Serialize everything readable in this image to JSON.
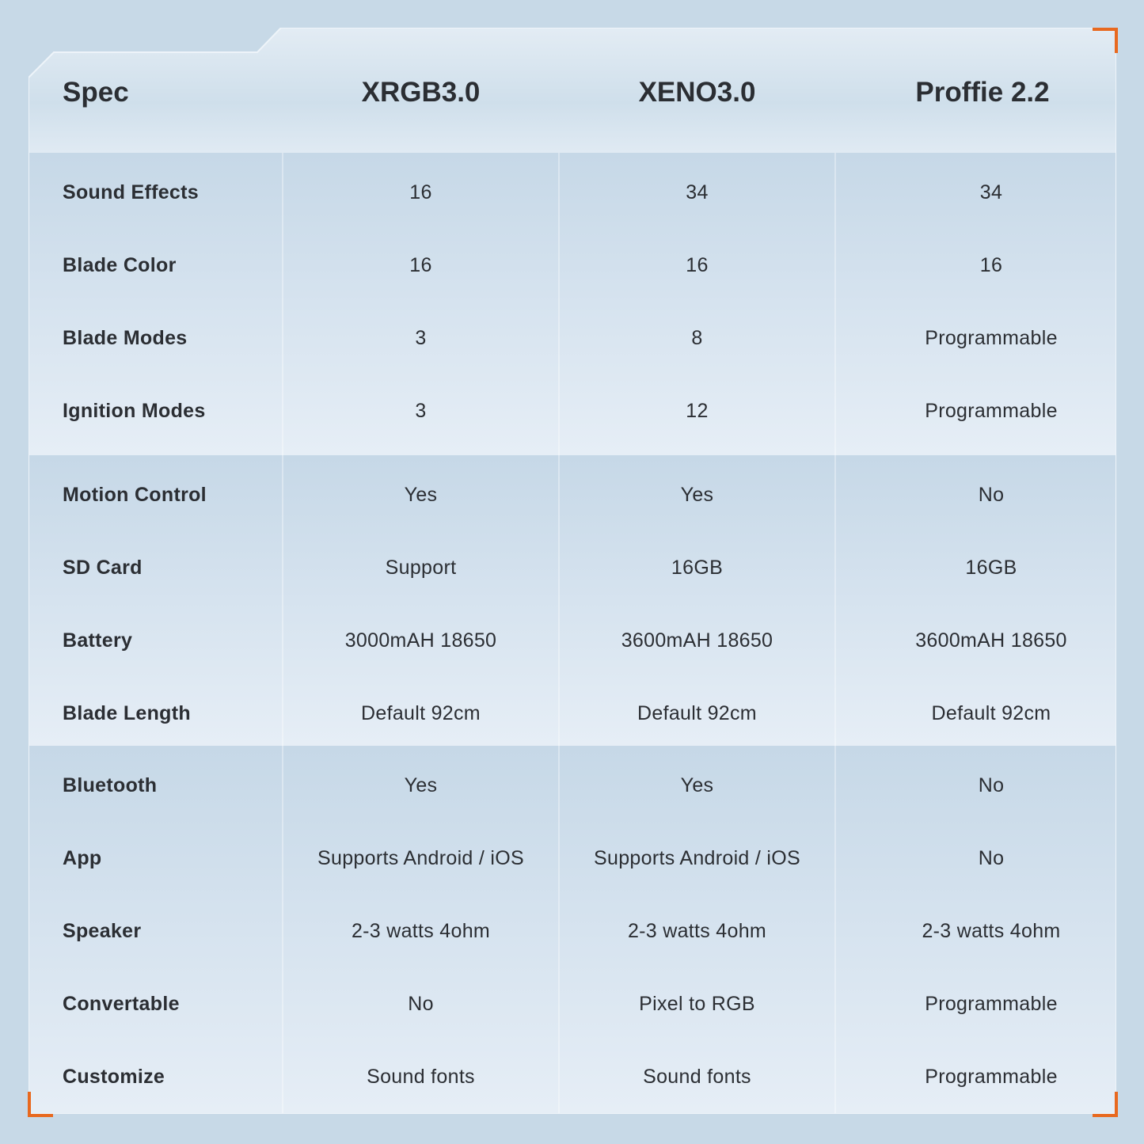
{
  "header": {
    "spec": "Spec",
    "columns": [
      "XRGB3.0",
      "XENO3.0",
      "Proffie 2.2"
    ]
  },
  "rows": [
    {
      "label": "Sound Effects",
      "values": [
        "16",
        "34",
        "34"
      ]
    },
    {
      "label": "Blade Color",
      "values": [
        "16",
        "16",
        "16"
      ]
    },
    {
      "label": "Blade Modes",
      "values": [
        "3",
        "8",
        "Programmable"
      ]
    },
    {
      "label": "Ignition Modes",
      "values": [
        "3",
        "12",
        "Programmable"
      ]
    },
    {
      "label": "Motion Control",
      "values": [
        "Yes",
        "Yes",
        "No"
      ]
    },
    {
      "label": "SD Card",
      "values": [
        "Support",
        "16GB",
        "16GB"
      ]
    },
    {
      "label": "Battery",
      "values": [
        "3000mAH 18650",
        "3600mAH 18650",
        "3600mAH 18650"
      ]
    },
    {
      "label": "Blade Length",
      "values": [
        "Default 92cm",
        "Default 92cm",
        "Default 92cm"
      ]
    },
    {
      "label": "Bluetooth",
      "values": [
        "Yes",
        "Yes",
        "No"
      ]
    },
    {
      "label": "App",
      "values": [
        "Supports Android / iOS",
        "Supports Android / iOS",
        "No"
      ]
    },
    {
      "label": "Speaker",
      "values": [
        "2-3 watts 4ohm",
        "2-3 watts 4ohm",
        "2-3 watts 4ohm"
      ]
    },
    {
      "label": "Convertable",
      "values": [
        "No",
        "Pixel to RGB",
        "Programmable"
      ]
    },
    {
      "label": "Customize",
      "values": [
        "Sound fonts",
        "Sound fonts",
        "Programmable"
      ]
    }
  ],
  "colors": {
    "background": "#c7d9e7",
    "accent": "#e8691f",
    "text": "#2b2e33"
  }
}
